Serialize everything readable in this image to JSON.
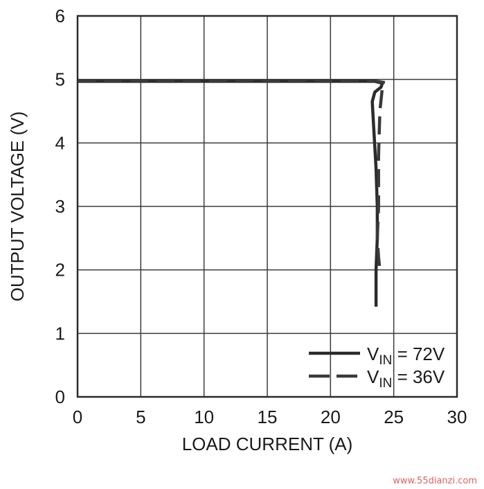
{
  "chart_data": {
    "type": "line",
    "title": "",
    "xlabel": "LOAD CURRENT (A)",
    "ylabel": "OUTPUT VOLTAGE (V)",
    "xlim": [
      0,
      30
    ],
    "ylim": [
      0,
      6
    ],
    "xticks": [
      0,
      5,
      10,
      15,
      20,
      25,
      30
    ],
    "yticks": [
      0,
      1,
      2,
      3,
      4,
      5,
      6
    ],
    "grid": true,
    "legend_position": "bottom-right",
    "series": [
      {
        "name": "V",
        "subscript": "IN",
        "value_text": " = 72V",
        "style": "solid",
        "color": "#2b2b2b",
        "x": [
          0,
          5,
          10,
          15,
          20,
          23.5,
          24.1,
          24.0,
          23.5,
          23.3,
          23.4,
          23.6,
          23.7,
          23.7,
          23.6,
          23.6
        ],
        "y": [
          4.97,
          4.97,
          4.97,
          4.97,
          4.97,
          4.97,
          4.94,
          4.88,
          4.8,
          4.65,
          4.3,
          3.6,
          3.0,
          2.5,
          2.0,
          1.42
        ]
      },
      {
        "name": "V",
        "subscript": "IN",
        "value_text": " = 36V",
        "style": "dashed",
        "color": "#3a3a3a",
        "x": [
          0,
          5,
          10,
          15,
          20,
          23.6,
          24.3,
          24.1,
          23.9,
          23.8,
          23.8,
          23.7,
          23.8,
          23.9
        ],
        "y": [
          4.97,
          4.97,
          4.97,
          4.97,
          4.97,
          4.97,
          4.95,
          4.87,
          4.5,
          3.8,
          3.0,
          2.5,
          2.2,
          2.0
        ]
      }
    ]
  },
  "watermark": "www.55dianzi.com"
}
